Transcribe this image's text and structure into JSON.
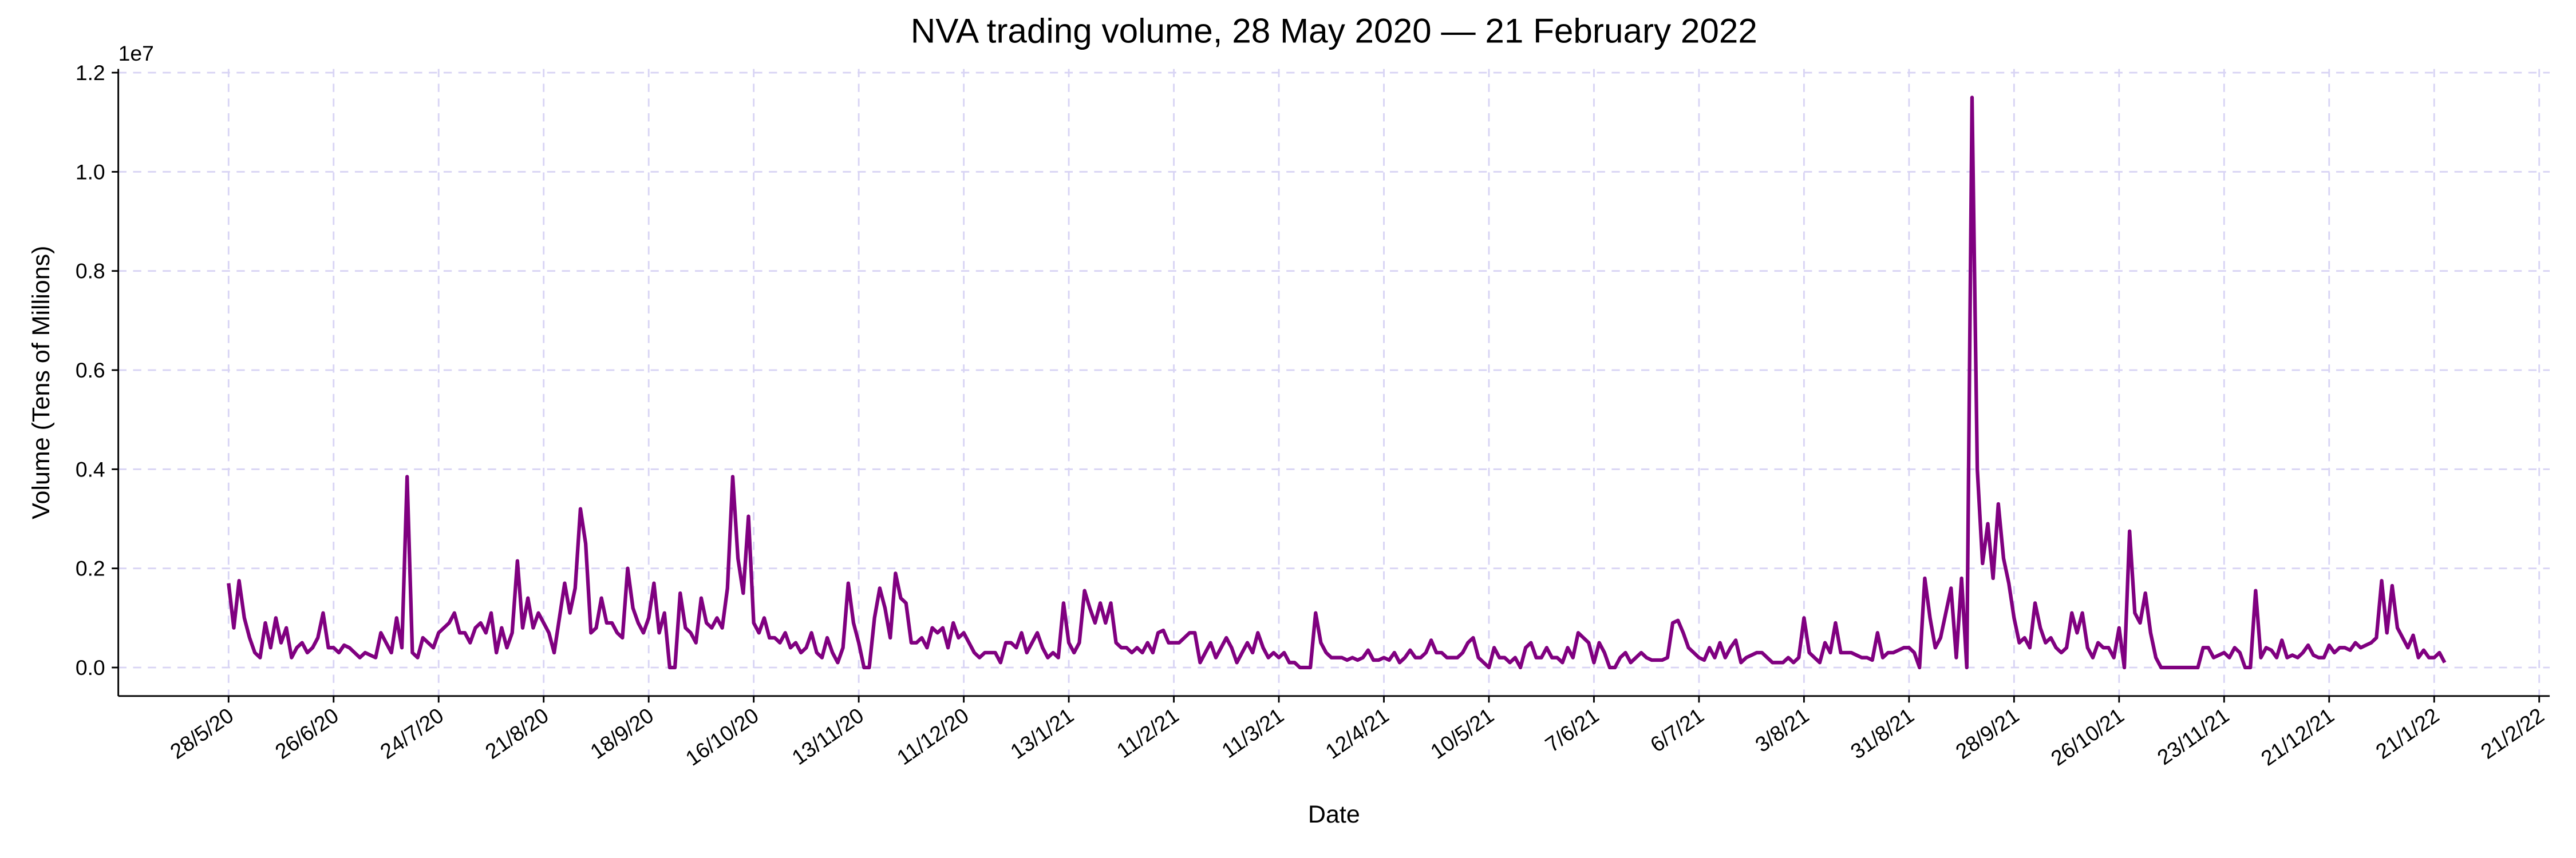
{
  "chart_data": {
    "type": "line",
    "title": "NVA trading volume, 28 May 2020 — 21 February 2022",
    "xlabel": "Date",
    "ylabel": "Volume (Tens of Millions)",
    "y_offset_label": "1e7",
    "color": "#800080",
    "grid": true,
    "xlim": [
      -21,
      442
    ],
    "xticks": [
      {
        "value": 0,
        "label": "28/5/20"
      },
      {
        "value": 20,
        "label": "26/6/20"
      },
      {
        "value": 40,
        "label": "24/7/20"
      },
      {
        "value": 60,
        "label": "21/8/20"
      },
      {
        "value": 80,
        "label": "18/9/20"
      },
      {
        "value": 100,
        "label": "16/10/20"
      },
      {
        "value": 120,
        "label": "13/11/20"
      },
      {
        "value": 140,
        "label": "11/12/20"
      },
      {
        "value": 160,
        "label": "13/1/21"
      },
      {
        "value": 180,
        "label": "11/2/21"
      },
      {
        "value": 200,
        "label": "11/3/21"
      },
      {
        "value": 220,
        "label": "12/4/21"
      },
      {
        "value": 240,
        "label": "10/5/21"
      },
      {
        "value": 260,
        "label": "7/6/21"
      },
      {
        "value": 280,
        "label": "6/7/21"
      },
      {
        "value": 300,
        "label": "3/8/21"
      },
      {
        "value": 320,
        "label": "31/8/21"
      },
      {
        "value": 340,
        "label": "28/9/21"
      },
      {
        "value": 360,
        "label": "26/10/21"
      },
      {
        "value": 380,
        "label": "23/11/21"
      },
      {
        "value": 400,
        "label": "21/12/21"
      },
      {
        "value": 420,
        "label": "21/1/22"
      },
      {
        "value": 440,
        "label": "21/2/22"
      }
    ],
    "ylim": [
      -0.0575,
      1.2075
    ],
    "yticks": [
      {
        "value": 0,
        "label": "0.0"
      },
      {
        "value": 0.2,
        "label": "0.2"
      },
      {
        "value": 0.4,
        "label": "0.4"
      },
      {
        "value": 0.6,
        "label": "0.6"
      },
      {
        "value": 0.8,
        "label": "0.8"
      },
      {
        "value": 1,
        "label": "1.0"
      },
      {
        "value": 1.2,
        "label": "1.2"
      }
    ],
    "values": [
      0.17,
      0.08,
      0.175,
      0.1,
      0.06,
      0.03,
      0.02,
      0.09,
      0.04,
      0.1,
      0.05,
      0.08,
      0.02,
      0.04,
      0.05,
      0.03,
      0.04,
      0.06,
      0.11,
      0.04,
      0.04,
      0.03,
      0.045,
      0.04,
      0.03,
      0.02,
      0.03,
      0.025,
      0.02,
      0.07,
      0.05,
      0.03,
      0.1,
      0.04,
      0.385,
      0.03,
      0.02,
      0.06,
      0.05,
      0.04,
      0.07,
      0.08,
      0.09,
      0.11,
      0.07,
      0.07,
      0.05,
      0.08,
      0.09,
      0.07,
      0.11,
      0.03,
      0.08,
      0.04,
      0.07,
      0.215,
      0.08,
      0.14,
      0.08,
      0.11,
      0.09,
      0.07,
      0.03,
      0.1,
      0.17,
      0.11,
      0.16,
      0.32,
      0.25,
      0.07,
      0.08,
      0.14,
      0.09,
      0.09,
      0.07,
      0.06,
      0.2,
      0.12,
      0.09,
      0.07,
      0.1,
      0.17,
      0.07,
      0.11,
      0.0,
      0.0,
      0.15,
      0.08,
      0.07,
      0.05,
      0.14,
      0.09,
      0.08,
      0.1,
      0.08,
      0.16,
      0.385,
      0.22,
      0.15,
      0.305,
      0.09,
      0.07,
      0.1,
      0.06,
      0.06,
      0.05,
      0.07,
      0.04,
      0.05,
      0.03,
      0.04,
      0.07,
      0.03,
      0.02,
      0.06,
      0.03,
      0.01,
      0.04,
      0.17,
      0.09,
      0.05,
      0.0,
      0.0,
      0.1,
      0.16,
      0.12,
      0.06,
      0.19,
      0.14,
      0.13,
      0.05,
      0.05,
      0.06,
      0.04,
      0.08,
      0.07,
      0.08,
      0.04,
      0.09,
      0.06,
      0.07,
      0.05,
      0.03,
      0.02,
      0.03,
      0.03,
      0.03,
      0.01,
      0.05,
      0.05,
      0.04,
      0.07,
      0.03,
      0.05,
      0.07,
      0.04,
      0.02,
      0.03,
      0.02,
      0.13,
      0.05,
      0.03,
      0.05,
      0.155,
      0.12,
      0.09,
      0.13,
      0.09,
      0.13,
      0.05,
      0.04,
      0.04,
      0.03,
      0.04,
      0.03,
      0.05,
      0.03,
      0.07,
      0.075,
      0.05,
      0.05,
      0.05,
      0.06,
      0.07,
      0.07,
      0.01,
      0.03,
      0.05,
      0.02,
      0.04,
      0.06,
      0.04,
      0.01,
      0.03,
      0.05,
      0.03,
      0.07,
      0.04,
      0.02,
      0.03,
      0.02,
      0.03,
      0.01,
      0.01,
      0.0,
      0.0,
      0.0,
      0.11,
      0.05,
      0.03,
      0.02,
      0.02,
      0.02,
      0.015,
      0.02,
      0.015,
      0.02,
      0.035,
      0.015,
      0.015,
      0.02,
      0.015,
      0.03,
      0.01,
      0.02,
      0.035,
      0.02,
      0.02,
      0.03,
      0.055,
      0.03,
      0.03,
      0.02,
      0.02,
      0.02,
      0.03,
      0.05,
      0.06,
      0.02,
      0.01,
      0.0,
      0.04,
      0.02,
      0.02,
      0.01,
      0.02,
      0.0,
      0.04,
      0.05,
      0.02,
      0.02,
      0.04,
      0.02,
      0.02,
      0.01,
      0.04,
      0.02,
      0.07,
      0.06,
      0.05,
      0.01,
      0.05,
      0.03,
      0.0,
      0.0,
      0.02,
      0.03,
      0.01,
      0.02,
      0.03,
      0.02,
      0.015,
      0.015,
      0.015,
      0.02,
      0.09,
      0.095,
      0.07,
      0.04,
      0.03,
      0.02,
      0.015,
      0.04,
      0.02,
      0.05,
      0.02,
      0.04,
      0.055,
      0.01,
      0.02,
      0.025,
      0.03,
      0.03,
      0.02,
      0.01,
      0.01,
      0.01,
      0.02,
      0.01,
      0.02,
      0.1,
      0.03,
      0.02,
      0.01,
      0.05,
      0.03,
      0.09,
      0.03,
      0.03,
      0.03,
      0.025,
      0.02,
      0.02,
      0.015,
      0.07,
      0.02,
      0.03,
      0.03,
      0.035,
      0.04,
      0.04,
      0.03,
      0.0,
      0.18,
      0.1,
      0.04,
      0.06,
      0.11,
      0.16,
      0.02,
      0.18,
      0.0,
      1.15,
      0.4,
      0.21,
      0.29,
      0.18,
      0.33,
      0.22,
      0.17,
      0.1,
      0.05,
      0.06,
      0.04,
      0.13,
      0.08,
      0.05,
      0.06,
      0.04,
      0.03,
      0.04,
      0.11,
      0.07,
      0.11,
      0.04,
      0.02,
      0.05,
      0.04,
      0.04,
      0.02,
      0.08,
      0.0,
      0.275,
      0.11,
      0.09,
      0.15,
      0.07,
      0.02,
      0.0,
      0.0,
      0.0,
      0.0,
      0.0,
      0.0,
      0.0,
      0.0,
      0.04,
      0.04,
      0.02,
      0.025,
      0.03,
      0.02,
      0.04,
      0.03,
      0.0,
      0.0,
      0.155,
      0.02,
      0.04,
      0.035,
      0.02,
      0.055,
      0.02,
      0.025,
      0.02,
      0.03,
      0.045,
      0.025,
      0.02,
      0.02,
      0.045,
      0.03,
      0.04,
      0.04,
      0.035,
      0.05,
      0.04,
      0.045,
      0.05,
      0.06,
      0.175,
      0.07,
      0.165,
      0.08,
      0.06,
      0.04,
      0.065,
      0.02,
      0.035,
      0.02,
      0.02,
      0.03,
      0.01
    ]
  }
}
